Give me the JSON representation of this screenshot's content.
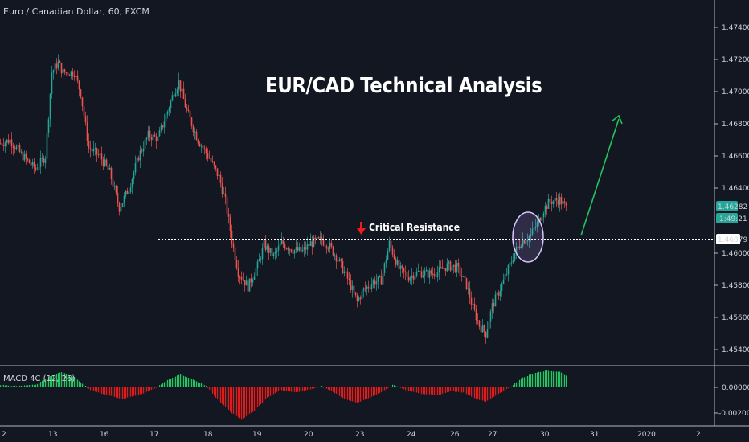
{
  "symbol_label": "Euro / Canadian Dollar, 60, FXCM",
  "annotation_title": "EUR/CAD Technical Analysis",
  "resistance_label": "Critical Resistance",
  "colors": {
    "background": "#131722",
    "up_candle": "#26a69a",
    "down_candle": "#ef5350",
    "resistance_line": "#ffffff",
    "arrow_up": "#22c55e",
    "arrow_down": "#ef1c1c",
    "circle": "#d9c7ff",
    "macd_positive": "#22c55e",
    "macd_negative": "#e01b1b",
    "last_price_badge": "#26a69a"
  },
  "icons": {
    "resistance_marker": "arrow-down-icon",
    "target_arrow": "arrow-up-right-icon"
  },
  "chart_data": [
    {
      "type": "candlestick",
      "name": "price",
      "x_ticks": [
        "2",
        "13",
        "16",
        "17",
        "18",
        "19",
        "20",
        "23",
        "24",
        "26",
        "27",
        "30",
        "31",
        "2020",
        "2"
      ],
      "y_ticks": [
        "1.47400",
        "1.47200",
        "1.47000",
        "1.46800",
        "1.46600",
        "1.46400",
        "1.46000",
        "1.45800",
        "1.45600",
        "1.45400"
      ],
      "ylim": [
        1.4531,
        1.4755
      ],
      "last_price": "1.46282",
      "countdown": "1:49:21",
      "resistance_level": "1.46079",
      "anchors": [
        [
          0,
          1.4668
        ],
        [
          6,
          1.467
        ],
        [
          14,
          1.466
        ],
        [
          22,
          1.4652
        ],
        [
          28,
          1.466
        ],
        [
          32,
          1.4712
        ],
        [
          36,
          1.4718
        ],
        [
          39,
          1.4712
        ],
        [
          46,
          1.4712
        ],
        [
          50,
          1.4699
        ],
        [
          55,
          1.4665
        ],
        [
          62,
          1.466
        ],
        [
          68,
          1.465
        ],
        [
          74,
          1.4628
        ],
        [
          80,
          1.464
        ],
        [
          86,
          1.466
        ],
        [
          92,
          1.4673
        ],
        [
          98,
          1.4671
        ],
        [
          104,
          1.4688
        ],
        [
          108,
          1.47
        ],
        [
          111,
          1.4706
        ],
        [
          116,
          1.4688
        ],
        [
          123,
          1.467
        ],
        [
          130,
          1.4659
        ],
        [
          136,
          1.4647
        ],
        [
          140,
          1.4632
        ],
        [
          144,
          1.4608
        ],
        [
          148,
          1.4588
        ],
        [
          154,
          1.4579
        ],
        [
          160,
          1.4592
        ],
        [
          164,
          1.4605
        ],
        [
          170,
          1.4598
        ],
        [
          175,
          1.4606
        ],
        [
          182,
          1.4602
        ],
        [
          188,
          1.4601
        ],
        [
          193,
          1.4606
        ],
        [
          200,
          1.4608
        ],
        [
          205,
          1.4604
        ],
        [
          210,
          1.4596
        ],
        [
          216,
          1.4584
        ],
        [
          222,
          1.457
        ],
        [
          226,
          1.4577
        ],
        [
          232,
          1.4582
        ],
        [
          237,
          1.4583
        ],
        [
          242,
          1.4606
        ],
        [
          248,
          1.459
        ],
        [
          254,
          1.4585
        ],
        [
          260,
          1.4588
        ],
        [
          266,
          1.4587
        ],
        [
          272,
          1.4588
        ],
        [
          278,
          1.4592
        ],
        [
          284,
          1.4591
        ],
        [
          290,
          1.458
        ],
        [
          294,
          1.4566
        ],
        [
          298,
          1.4555
        ],
        [
          302,
          1.455
        ],
        [
          306,
          1.4567
        ],
        [
          312,
          1.458
        ],
        [
          316,
          1.459
        ],
        [
          320,
          1.46
        ],
        [
          324,
          1.4607
        ],
        [
          330,
          1.4611
        ],
        [
          334,
          1.4618
        ],
        [
          338,
          1.4627
        ],
        [
          342,
          1.4632
        ],
        [
          348,
          1.4633
        ],
        [
          352,
          1.4628
        ]
      ]
    },
    {
      "type": "histogram",
      "name": "MACD 4C (12, 26)",
      "y_ticks": [
        "0.00000",
        "-0.00200"
      ],
      "ylim": [
        -0.0026,
        0.0012
      ],
      "anchors": [
        [
          0,
          0.0002
        ],
        [
          10,
          0.0001
        ],
        [
          22,
          0.0002
        ],
        [
          30,
          0.0008
        ],
        [
          38,
          0.0012
        ],
        [
          46,
          0.0008
        ],
        [
          52,
          0.0002
        ],
        [
          56,
          -0.0002
        ],
        [
          66,
          -0.0006
        ],
        [
          76,
          -0.0009
        ],
        [
          86,
          -0.0006
        ],
        [
          96,
          -0.0001
        ],
        [
          104,
          0.0006
        ],
        [
          112,
          0.001
        ],
        [
          120,
          0.0006
        ],
        [
          128,
          0.0001
        ],
        [
          134,
          -0.0008
        ],
        [
          144,
          -0.002
        ],
        [
          150,
          -0.0025
        ],
        [
          158,
          -0.0018
        ],
        [
          166,
          -0.0008
        ],
        [
          174,
          -0.0002
        ],
        [
          184,
          -0.0004
        ],
        [
          194,
          -0.0001
        ],
        [
          200,
          0.0001
        ],
        [
          206,
          -0.0003
        ],
        [
          214,
          -0.0009
        ],
        [
          222,
          -0.0012
        ],
        [
          230,
          -0.0008
        ],
        [
          238,
          -0.0003
        ],
        [
          244,
          0.0002
        ],
        [
          252,
          -0.0002
        ],
        [
          262,
          -0.0005
        ],
        [
          272,
          -0.0006
        ],
        [
          280,
          -0.0003
        ],
        [
          288,
          -0.0004
        ],
        [
          296,
          -0.0009
        ],
        [
          302,
          -0.0011
        ],
        [
          310,
          -0.0005
        ],
        [
          318,
          0.0001
        ],
        [
          324,
          0.0007
        ],
        [
          332,
          0.0011
        ],
        [
          340,
          0.0013
        ],
        [
          348,
          0.0012
        ],
        [
          352,
          0.0009
        ]
      ]
    }
  ]
}
